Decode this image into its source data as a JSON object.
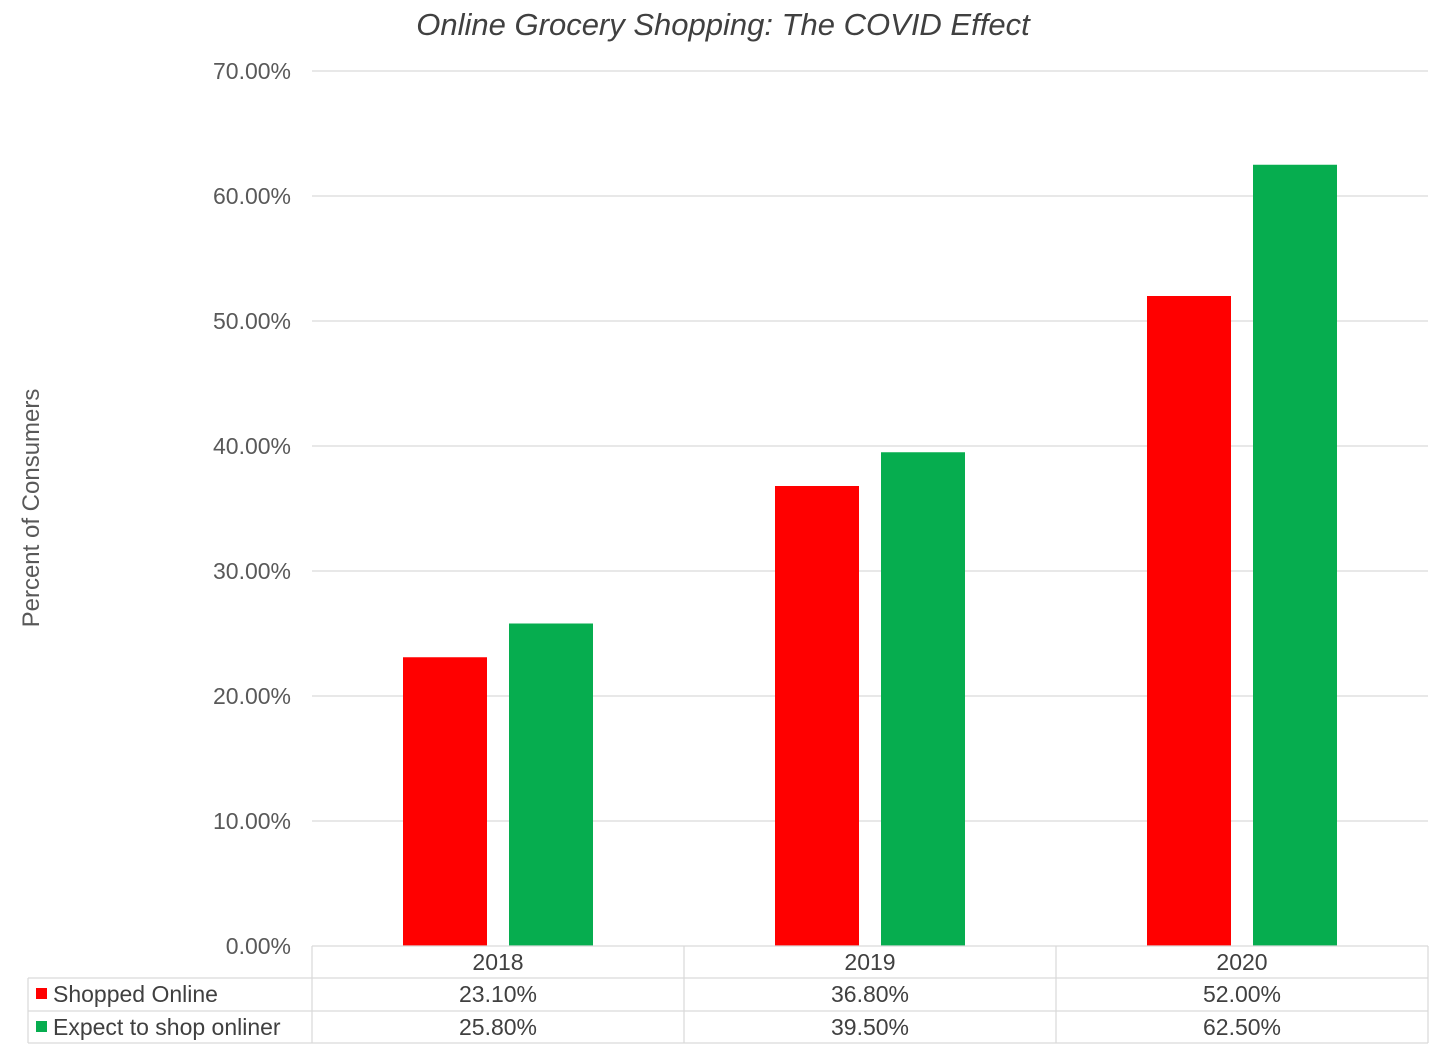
{
  "chart_data": {
    "type": "bar",
    "title": "Online Grocery Shopping: The COVID Effect",
    "xlabel": "",
    "ylabel": "Percent of Consumers",
    "ylim": [
      0,
      70
    ],
    "yticks": [
      0,
      10,
      20,
      30,
      40,
      50,
      60,
      70
    ],
    "ytick_labels": [
      "0.00%",
      "10.00%",
      "20.00%",
      "30.00%",
      "40.00%",
      "50.00%",
      "60.00%",
      "70.00%"
    ],
    "categories": [
      "2018",
      "2019",
      "2020"
    ],
    "grid": true,
    "legend": "data-table-below",
    "series": [
      {
        "name": "Shopped Online",
        "color": "#ff0000",
        "values": [
          23.1,
          36.8,
          52.0
        ],
        "labels": [
          "23.10%",
          "36.80%",
          "52.00%"
        ]
      },
      {
        "name": "Expect to shop onliner",
        "color": "#06ad4f",
        "values": [
          25.8,
          39.5,
          62.5
        ],
        "labels": [
          "25.80%",
          "39.50%",
          "62.50%"
        ]
      }
    ]
  }
}
